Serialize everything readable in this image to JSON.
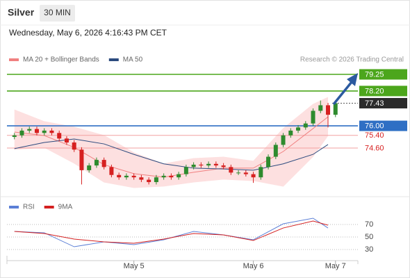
{
  "header": {
    "title": "Silver",
    "timeframe": "30 MIN",
    "datetime": "Wednesday, May 6, 2026 4:16:43 PM CET"
  },
  "chart_data": [
    {
      "type": "candlestick",
      "credit": "Research © 2026 Trading Central",
      "up_color": "#2e8b2e",
      "down_color": "#d62020",
      "ohlc": [
        [
          75.3,
          75.55,
          75.15,
          75.4
        ],
        [
          75.4,
          75.85,
          75.25,
          75.7
        ],
        [
          75.7,
          75.95,
          75.55,
          75.8
        ],
        [
          75.8,
          75.95,
          75.4,
          75.55
        ],
        [
          75.55,
          75.85,
          75.4,
          75.7
        ],
        [
          75.7,
          75.85,
          75.4,
          75.55
        ],
        [
          75.55,
          75.7,
          75.05,
          75.2
        ],
        [
          75.2,
          75.35,
          74.8,
          74.95
        ],
        [
          74.95,
          75.1,
          74.35,
          74.5
        ],
        [
          74.5,
          74.65,
          72.3,
          73.2
        ],
        [
          73.2,
          73.65,
          73.05,
          73.5
        ],
        [
          73.5,
          74.0,
          73.35,
          73.85
        ],
        [
          73.85,
          74.0,
          73.25,
          73.4
        ],
        [
          73.4,
          73.55,
          72.75,
          72.9
        ],
        [
          72.9,
          73.05,
          72.6,
          72.75
        ],
        [
          72.75,
          73.0,
          72.6,
          72.85
        ],
        [
          72.85,
          73.0,
          72.6,
          72.75
        ],
        [
          72.75,
          72.9,
          72.45,
          72.6
        ],
        [
          72.6,
          72.75,
          72.3,
          72.45
        ],
        [
          72.45,
          72.9,
          72.3,
          72.75
        ],
        [
          72.75,
          73.0,
          72.6,
          72.85
        ],
        [
          72.85,
          73.0,
          72.6,
          72.75
        ],
        [
          72.75,
          73.1,
          72.6,
          72.95
        ],
        [
          72.95,
          73.55,
          72.8,
          73.4
        ],
        [
          73.4,
          73.7,
          73.25,
          73.55
        ],
        [
          73.55,
          73.7,
          73.35,
          73.5
        ],
        [
          73.5,
          73.75,
          73.35,
          73.6
        ],
        [
          73.6,
          73.75,
          73.35,
          73.5
        ],
        [
          73.5,
          73.65,
          73.25,
          73.4
        ],
        [
          73.4,
          73.55,
          72.9,
          73.05
        ],
        [
          73.05,
          73.2,
          72.9,
          73.05
        ],
        [
          73.05,
          73.2,
          72.8,
          72.95
        ],
        [
          72.95,
          73.1,
          72.4,
          72.75
        ],
        [
          72.75,
          73.55,
          72.6,
          73.4
        ],
        [
          73.4,
          74.2,
          73.25,
          74.05
        ],
        [
          74.05,
          74.95,
          73.9,
          74.8
        ],
        [
          74.8,
          75.55,
          74.65,
          75.4
        ],
        [
          75.4,
          75.85,
          75.25,
          75.7
        ],
        [
          75.7,
          76.05,
          75.55,
          75.9
        ],
        [
          75.9,
          76.3,
          75.75,
          76.15
        ],
        [
          76.15,
          77.1,
          76.0,
          76.95
        ],
        [
          76.95,
          77.6,
          76.8,
          77.3
        ],
        [
          77.3,
          77.45,
          75.9,
          76.7
        ],
        [
          76.7,
          77.58,
          76.55,
          77.43
        ]
      ],
      "ma_x": [
        0,
        4,
        8,
        12,
        16,
        20,
        24,
        28,
        32,
        36,
        40,
        42
      ],
      "series": [
        {
          "name": "MA 20 + Bollinger Bands",
          "color": "#f08080",
          "band_color": "#fde0e0",
          "values": [
            75.61,
            75.39,
            74.64,
            73.55,
            72.98,
            72.76,
            73.07,
            73.33,
            73.33,
            74.38,
            75.83,
            76.57
          ],
          "upper": [
            77.01,
            76.27,
            75.92,
            75.39,
            74.3,
            73.6,
            73.94,
            74.03,
            73.77,
            75.83,
            77.36,
            77.8
          ],
          "lower": [
            74.51,
            74.64,
            73.64,
            72.45,
            72.1,
            72.19,
            72.45,
            72.63,
            72.54,
            72.19,
            74.07,
            75.39
          ]
        },
        {
          "name": "MA 50",
          "color": "#2b4a7e",
          "values": [
            74.56,
            74.95,
            75.17,
            74.86,
            74.2,
            73.6,
            73.33,
            73.28,
            73.2,
            73.6,
            74.2,
            74.82
          ]
        }
      ],
      "levels": [
        {
          "value": 79.25,
          "line_color": "#4ca61c",
          "box_color": "#4ca61c",
          "text_color": "#ffffff"
        },
        {
          "value": 78.2,
          "label": "78.20",
          "line_color": "#4ca61c",
          "box_color": "#4ca61c",
          "text_color": "#ffffff"
        },
        {
          "value": 77.43,
          "line_color": "#555555",
          "box_color": "#2b2b2b",
          "text_color": "#ffffff",
          "dotted": true
        },
        {
          "value": 76.0,
          "label": "76.00",
          "line_color": "#2f6fc4",
          "box_color": "#2f6fc4",
          "text_color": "#ffffff"
        },
        {
          "value": 75.4,
          "label": "75.40",
          "line_color": "#f2a0a0",
          "box_color": null,
          "text_color": "#d62020"
        },
        {
          "value": 74.6,
          "label": "74.60",
          "line_color": "#f2a0a0",
          "box_color": null,
          "text_color": "#d62020"
        }
      ],
      "xlim": [
        -1,
        46
      ],
      "ylim": [
        71.66,
        81.4
      ]
    },
    {
      "type": "line",
      "x": [
        0,
        4,
        8,
        12,
        16,
        20,
        24,
        28,
        32,
        36,
        40,
        42
      ],
      "series": [
        {
          "name": "RSI",
          "color": "#5b7fd6",
          "values": [
            58.9,
            56.7,
            34.4,
            42.2,
            37.8,
            45.6,
            58.9,
            53.3,
            45.6,
            71.1,
            80,
            64.4
          ]
        },
        {
          "name": "9MA",
          "color": "#d42020",
          "values": [
            58.9,
            55.6,
            46.7,
            42.2,
            40,
            46.7,
            55.6,
            53.3,
            44.4,
            64.4,
            75.6,
            68.9
          ]
        }
      ],
      "xlim": [
        -1,
        46
      ],
      "ylim": [
        20,
        100
      ],
      "yticks": [
        70,
        50,
        30
      ],
      "xticks": [
        {
          "value": 16,
          "label": "May 5"
        },
        {
          "value": 32,
          "label": "May 6"
        },
        {
          "value": 43,
          "label": "May 7"
        }
      ]
    }
  ]
}
